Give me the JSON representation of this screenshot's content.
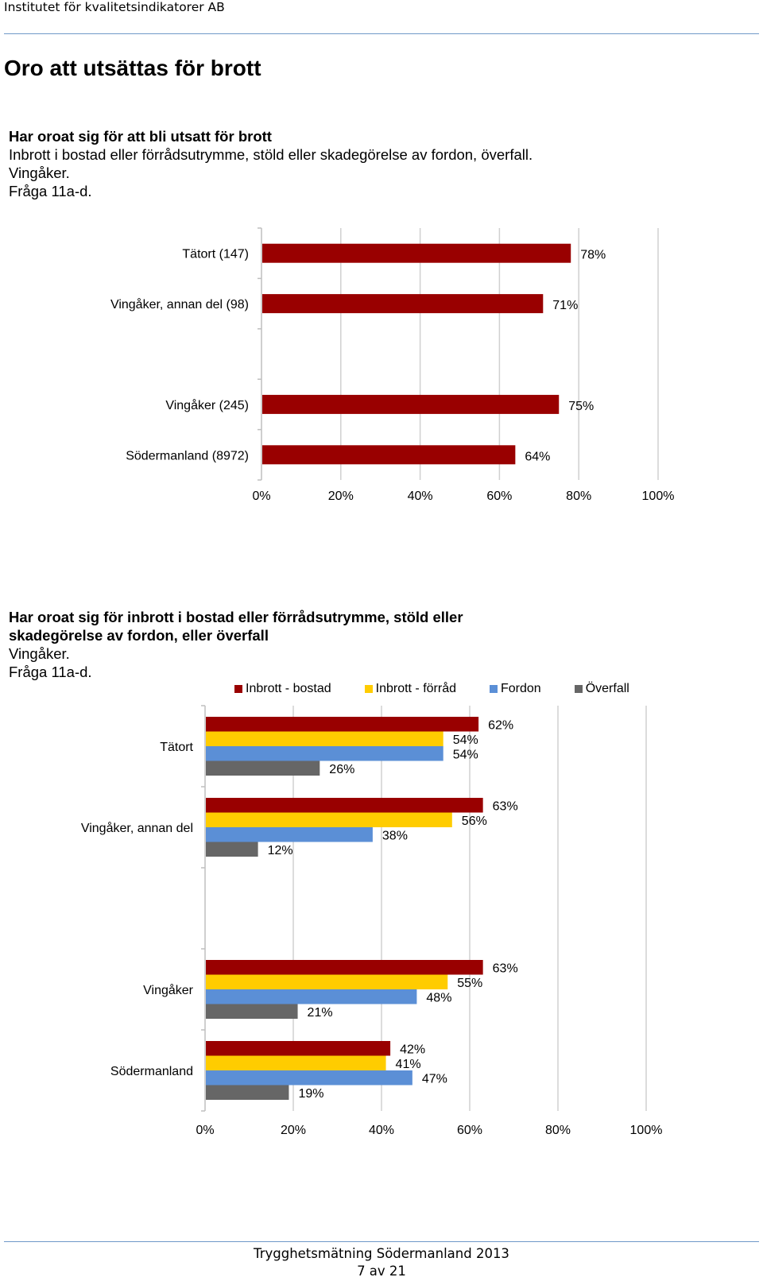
{
  "header": {
    "org": "Institutet för kvalitetsindikatorer AB"
  },
  "page_title": "Oro att utsättas för brott",
  "footer": {
    "title": "Trygghetsmätning Södermanland 2013",
    "page": "7 av 21"
  },
  "colors": {
    "inbrott_bostad": "#990000",
    "inbrott_forrad": "#ffcc00",
    "fordon": "#5b8fd6",
    "overfall": "#666666",
    "rule": "#6f99c8",
    "grid": "#d0d0d0"
  },
  "chart1": {
    "heading": [
      "Har oroat sig för att bli utsatt för brott",
      "Inbrott i bostad eller förrådsutrymme, stöld eller skadegörelse av fordon, överfall.",
      "Vingåker.",
      "Fråga 11a-d."
    ]
  },
  "chart2": {
    "heading": [
      "Har oroat sig för inbrott i bostad eller förrådsutrymme, stöld eller skadegörelse av fordon, eller överfall",
      "Vingåker.",
      "Fråga 11a-d."
    ],
    "legend": [
      "Inbrott - bostad",
      "Inbrott - förråd",
      "Fordon",
      "Överfall"
    ]
  },
  "chart_data": [
    {
      "type": "bar",
      "orientation": "horizontal",
      "categories": [
        "Tätort (147)",
        "Vingåker, annan del (98)",
        "",
        "Vingåker (245)",
        "Södermanland (8972)"
      ],
      "values": [
        78,
        71,
        null,
        75,
        64
      ],
      "value_labels": [
        "78%",
        "71%",
        "",
        "75%",
        "64%"
      ],
      "x_ticks": [
        "0%",
        "20%",
        "40%",
        "60%",
        "80%",
        "100%"
      ],
      "xlim": [
        0,
        100
      ],
      "grid": true
    },
    {
      "type": "bar",
      "orientation": "horizontal",
      "categories": [
        "Tätort",
        "Vingåker, annan del",
        "",
        "Vingåker",
        "Södermanland"
      ],
      "series": [
        {
          "name": "Inbrott - bostad",
          "values": [
            62,
            63,
            null,
            63,
            42
          ],
          "labels": [
            "62%",
            "63%",
            "",
            "63%",
            "42%"
          ]
        },
        {
          "name": "Inbrott - förråd",
          "values": [
            54,
            56,
            null,
            55,
            41
          ],
          "labels": [
            "54%",
            "56%",
            "",
            "55%",
            "41%"
          ]
        },
        {
          "name": "Fordon",
          "values": [
            54,
            38,
            null,
            48,
            47
          ],
          "labels": [
            "54%",
            "38%",
            "",
            "48%",
            "47%"
          ]
        },
        {
          "name": "Överfall",
          "values": [
            26,
            12,
            null,
            21,
            19
          ],
          "labels": [
            "26%",
            "12%",
            "",
            "21%",
            "19%"
          ]
        }
      ],
      "x_ticks": [
        "0%",
        "20%",
        "40%",
        "60%",
        "80%",
        "100%"
      ],
      "xlim": [
        0,
        100
      ],
      "legend_position": "top",
      "grid": true
    }
  ]
}
